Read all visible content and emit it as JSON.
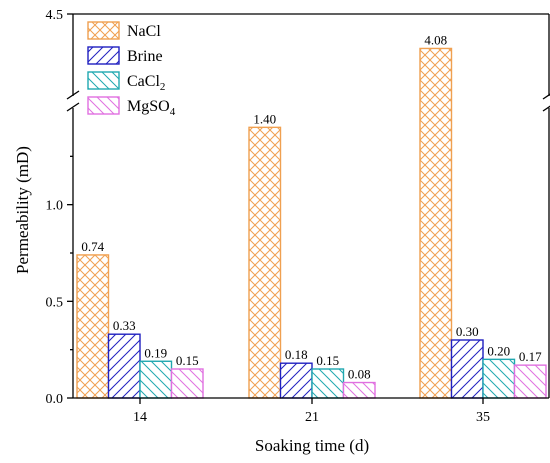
{
  "chart_data": {
    "type": "bar",
    "xlabel": "Soaking time (d)",
    "ylabel": "Permeability (mD)",
    "categories": [
      "14",
      "21",
      "35"
    ],
    "y_ticks_lower": [
      "0.0",
      "0.5",
      "1.0"
    ],
    "y_tick_upper": "4.5",
    "ylim_lower": [
      0,
      1.5
    ],
    "ylim_upper": [
      3.5,
      4.5
    ],
    "axis_break": true,
    "legend_position": "top-left",
    "series": [
      {
        "name": "NaCl",
        "name_base": "NaCl",
        "name_sub": "",
        "color": "#f0a050",
        "pattern": "cross",
        "values": [
          0.74,
          1.4,
          4.08
        ],
        "labels": [
          "0.74",
          "1.40",
          "4.08"
        ]
      },
      {
        "name": "Brine",
        "name_base": "Brine",
        "name_sub": "",
        "color": "#2020c0",
        "pattern": "diag-up",
        "values": [
          0.33,
          0.18,
          0.3
        ],
        "labels": [
          "0.33",
          "0.18",
          "0.30"
        ]
      },
      {
        "name": "CaCl2",
        "name_base": "CaCl",
        "name_sub": "2",
        "color": "#20a8b0",
        "pattern": "diag-down",
        "values": [
          0.19,
          0.15,
          0.2
        ],
        "labels": [
          "0.19",
          "0.15",
          "0.20"
        ]
      },
      {
        "name": "MgSO4",
        "name_base": "MgSO",
        "name_sub": "4",
        "color": "#e070e0",
        "pattern": "diag-down",
        "values": [
          0.15,
          0.08,
          0.17
        ],
        "labels": [
          "0.15",
          "0.08",
          "0.17"
        ]
      }
    ]
  }
}
